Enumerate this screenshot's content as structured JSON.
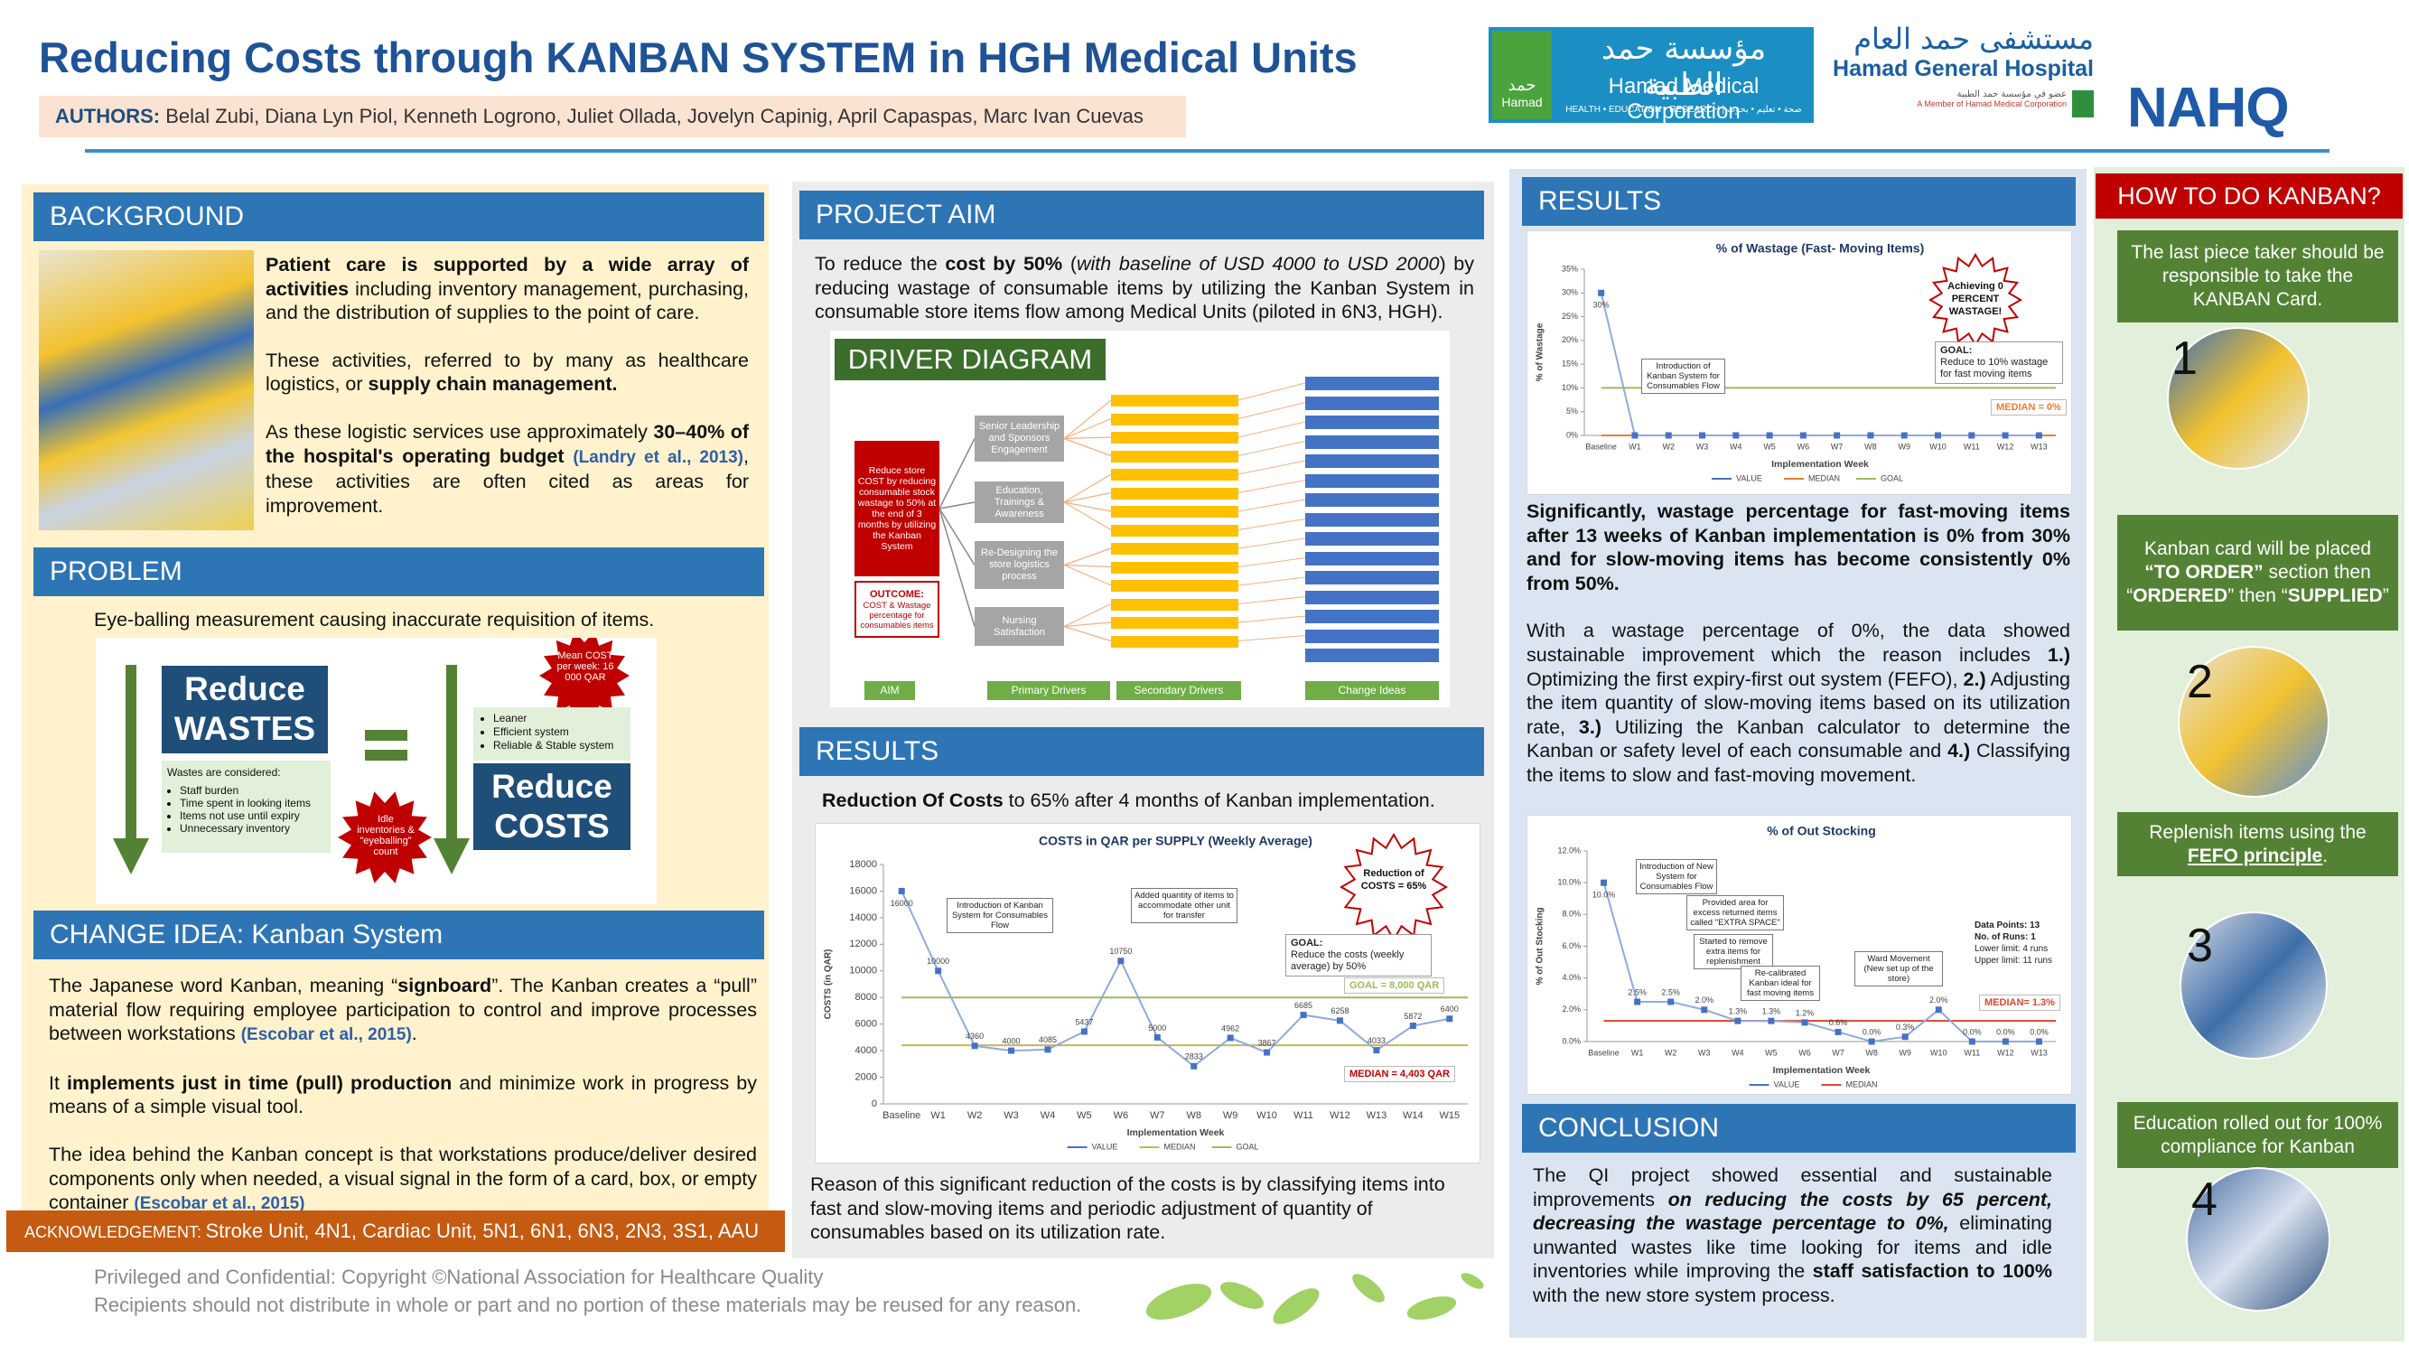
{
  "header": {
    "title": "Reducing Costs through KANBAN SYSTEM in HGH Medical Units",
    "authors_label": "AUTHORS:",
    "authors": "Belal Zubi, Diana Lyn Piol, Kenneth Logrono, Juliet Ollada, Jovelyn Capinig, April Capaspas, Marc Ivan Cuevas",
    "logos": {
      "hmc_icon_arabic": "حمد",
      "hmc_icon": "Hamad",
      "hmc_arabic": "مؤسسة حمد الطبية",
      "hmc": "Hamad Medical Corporation",
      "hmc_tagline": "HEALTH • EDUCATION • RESEARCH | صحة • تعليم • بحوث",
      "hgh_arabic": "مستشفى حمد العام",
      "hgh": "Hamad General Hospital",
      "hgh_sub_arabic": "عضو في مؤسسة حمد الطبية",
      "hgh_sub": "A Member of Hamad Medical Corporation",
      "nahq": "NAHQ"
    }
  },
  "background": {
    "heading": "BACKGROUND",
    "paragraphs": [
      [
        {
          "text": "Patient care is supported by a wide array of activities",
          "style": "bold"
        },
        {
          "text": " including inventory management, purchasing, and the distribution of supplies to the point of care."
        }
      ],
      [
        {
          "text": "These activities, referred to by many as healthcare logistics, or "
        },
        {
          "text": "supply chain management.",
          "style": "bold"
        }
      ],
      [
        {
          "text": "As these logistic services use approximately "
        },
        {
          "text": "30–40% of the hospital's operating budget",
          "style": "bold"
        },
        {
          "text": " "
        },
        {
          "text": "(Landry et al., 2013)",
          "style": "cite"
        },
        {
          "text": ", these activities are often cited as areas for improvement."
        }
      ]
    ]
  },
  "problem": {
    "heading": "PROBLEM",
    "text": "Eye-balling measurement causing inaccurate requisition of items.",
    "graphic": {
      "reduce_wastes": [
        "Reduce",
        "WASTES"
      ],
      "wastes_heading": "Wastes are considered:",
      "wastes": [
        "Staff burden",
        "Time spent in looking items",
        "Items not use until expiry",
        "Unnecessary inventory"
      ],
      "idle_burst": "Idle inventories & \"eyeballing\" count",
      "cost_burst": "Mean COST per week: 16 000 QAR",
      "benefits": [
        "Leaner",
        "Efficient system",
        "Reliable & Stable system"
      ],
      "reduce_costs": [
        "Reduce",
        "COSTS"
      ]
    }
  },
  "change_idea": {
    "heading": "CHANGE IDEA: Kanban System",
    "paragraphs": [
      [
        {
          "text": "The Japanese word Kanban, meaning “"
        },
        {
          "text": "signboard",
          "style": "bold"
        },
        {
          "text": "”. The Kanban creates a “pull” material flow requiring employee participation to control and improve processes between workstations "
        },
        {
          "text": "(Escobar et al., 2015)",
          "style": "cite"
        },
        {
          "text": "."
        }
      ],
      [
        {
          "text": "It "
        },
        {
          "text": "implements just in time (pull) production",
          "style": "bold"
        },
        {
          "text": " and minimize work in progress by means of a simple visual tool."
        }
      ],
      [
        {
          "text": "The idea behind the Kanban concept is that workstations produce/deliver desired components only when needed, a visual signal in the form of a card, box, or empty container "
        },
        {
          "text": "(Escobar et al., 2015)",
          "style": "cite"
        }
      ]
    ]
  },
  "acknowledgement": {
    "label": "ACKNOWLEDGEMENT:",
    "text": "Stroke Unit, 4N1, Cardiac Unit, 5N1, 6N1, 6N3, 2N3, 3S1, AAU"
  },
  "footer": {
    "copyright": "Privileged and Confidential: Copyright ©National Association for Healthcare Quality",
    "notice": "Recipients should not distribute in whole or part and no portion of these materials may be reused for any reason."
  },
  "project_aim": {
    "heading": "PROJECT AIM",
    "paragraphs": [
      [
        {
          "text": "To reduce the "
        },
        {
          "text": "cost by 50%",
          "style": "bold"
        },
        {
          "text": " ("
        },
        {
          "text": "with baseline of USD 4000 to USD 2000",
          "style": "italic"
        },
        {
          "text": ") by reducing wastage of consumable items by utilizing the Kanban System in consumable store items flow among Medical Units (piloted in 6N3, HGH)."
        }
      ]
    ]
  },
  "driver_diagram": {
    "title": "DRIVER DIAGRAM",
    "aim": "Reduce store COST by reducing consumable stock wastage to 50% at the end of 3 months by utilizing the Kanban System",
    "outcome_label": "OUTCOME:",
    "outcome": "COST & Wastage percentage for consumables items",
    "primary_drivers": [
      "Senior Leadership and Sponsors Engagement",
      "Education, Trainings & Awareness",
      "Re-Designing the store logistics process",
      "Nursing Satisfaction"
    ],
    "column_labels": [
      "AIM",
      "Primary Drivers",
      "Secondary Drivers",
      "Change Ideas"
    ]
  },
  "results_costs": {
    "heading": "RESULTS",
    "paragraphs": [
      [
        {
          "text": "Reduction Of Costs",
          "style": "bold"
        },
        {
          "text": " to 65% after 4 months of Kanban implementation."
        }
      ]
    ],
    "note": "Reason of this significant reduction of the costs is by classifying items into fast and slow-moving items and periodic adjustment of quantity of consumables based on its utilization rate."
  },
  "results_wastage": {
    "heading": "RESULTS",
    "paragraphs": [
      [
        {
          "text": "Significantly, wastage percentage for fast-moving items after 13 weeks of Kanban implementation is 0% from 30% and for slow-moving items has become consistently 0% from 50%.",
          "style": "bold"
        }
      ],
      [
        {
          "text": "With a wastage percentage of 0%, the data showed sustainable improvement which the reason includes "
        },
        {
          "text": "1.)",
          "style": "bold"
        },
        {
          "text": " Optimizing the first expiry-first out system (FEFO), "
        },
        {
          "text": "2.)",
          "style": "bold"
        },
        {
          "text": " Adjusting the item quantity of slow-moving items based on its utilization rate, "
        },
        {
          "text": "3.)",
          "style": "bold"
        },
        {
          "text": " Utilizing the Kanban calculator to determine the Kanban or safety level of each consumable and "
        },
        {
          "text": "4.)",
          "style": "bold"
        },
        {
          "text": " Classifying the items to slow and fast-moving movement."
        }
      ]
    ]
  },
  "conclusion": {
    "heading": "CONCLUSION",
    "paragraphs": [
      [
        {
          "text": "The QI project showed essential and sustainable improvements "
        },
        {
          "text": "on reducing the costs by 65 percent, decreasing the wastage percentage to 0%,",
          "style": "bold-italic"
        },
        {
          "text": " eliminating unwanted wastes like time looking for items and idle inventories while improving the "
        },
        {
          "text": "staff satisfaction to 100%",
          "style": "bold"
        },
        {
          "text": " with the new store system process."
        }
      ]
    ]
  },
  "how_to": {
    "heading": "HOW TO DO KANBAN?",
    "steps": [
      {
        "number": "1",
        "text": [
          {
            "text": "The last piece taker should be responsible to take the KANBAN Card."
          }
        ]
      },
      {
        "number": "2",
        "text": [
          {
            "text": "Kanban card will be placed "
          },
          {
            "text": "“TO ORDER”",
            "style": "bold"
          },
          {
            "text": " section then “"
          },
          {
            "text": "ORDERED",
            "style": "bold"
          },
          {
            "text": "” then “"
          },
          {
            "text": "SUPPLIED",
            "style": "bold"
          },
          {
            "text": "”"
          }
        ]
      },
      {
        "number": "3",
        "text": [
          {
            "text": "Replenish items using the "
          },
          {
            "text": "FEFO principle",
            "style": "bold-underline"
          },
          {
            "text": "."
          }
        ]
      },
      {
        "number": "4",
        "text": [
          {
            "text": "Education rolled out for 100% compliance for Kanban"
          }
        ]
      }
    ]
  },
  "chart_data": [
    {
      "type": "line",
      "title": "COSTS in QAR per SUPPLY (Weekly Average)",
      "xlabel": "Implementation Week",
      "ylabel": "COSTS (in QAR)",
      "categories": [
        "Baseline",
        "W1",
        "W2",
        "W3",
        "W4",
        "W5",
        "W6",
        "W7",
        "W8",
        "W9",
        "W10",
        "W11",
        "W12",
        "W13",
        "W14",
        "W15"
      ],
      "series": [
        {
          "name": "VALUE",
          "color": "#4472c4",
          "values": [
            16000,
            10000,
            4360,
            4000,
            4085,
            5437,
            10750,
            5000,
            2833,
            4962,
            3867,
            6685,
            6258,
            4033,
            5872,
            6400
          ]
        }
      ],
      "reference_lines": [
        {
          "name": "MEDIAN",
          "color": "#c9b458",
          "value": 4403,
          "label": "MEDIAN = 4,403 QAR"
        },
        {
          "name": "GOAL",
          "color": "#9bbb59",
          "value": 8000,
          "label": "GOAL = 8,000 QAR"
        }
      ],
      "ylim": [
        0,
        18000
      ],
      "yticks": [
        0,
        2000,
        4000,
        6000,
        8000,
        10000,
        12000,
        14000,
        16000,
        18000
      ],
      "annotations": [
        "Introduction of Kanban System for Consumables Flow",
        "Added quantity of items to accommodate other unit for transfer"
      ],
      "callout": "Reduction of COSTS = 65%",
      "goal_note": {
        "heading": "GOAL:",
        "text": "Reduce the costs (weekly average) by 50%"
      }
    },
    {
      "type": "line",
      "title": "% of Wastage (Fast- Moving Items)",
      "xlabel": "Implementation Week",
      "ylabel": "% of Wastage",
      "categories": [
        "Baseline",
        "W1",
        "W2",
        "W3",
        "W4",
        "W5",
        "W6",
        "W7",
        "W8",
        "W9",
        "W10",
        "W11",
        "W12",
        "W13"
      ],
      "series": [
        {
          "name": "VALUE",
          "color": "#4472c4",
          "values": [
            30,
            0,
            0,
            0,
            0,
            0,
            0,
            0,
            0,
            0,
            0,
            0,
            0,
            0
          ],
          "value_labels": [
            "30%",
            null,
            null,
            null,
            null,
            null,
            null,
            null,
            null,
            null,
            null,
            null,
            null,
            null
          ]
        }
      ],
      "reference_lines": [
        {
          "name": "MEDIAN",
          "color": "#ed7d31",
          "value": 0,
          "label": "MEDIAN = 0%"
        },
        {
          "name": "GOAL",
          "color": "#9bbb59",
          "value": 10
        }
      ],
      "ylim": [
        0,
        35
      ],
      "yticks": [
        {
          "value": 0,
          "label": "0%"
        },
        {
          "value": 5,
          "label": "5%"
        },
        {
          "value": 10,
          "label": "10%"
        },
        {
          "value": 15,
          "label": "15%"
        },
        {
          "value": 20,
          "label": "20%"
        },
        {
          "value": 25,
          "label": "25%"
        },
        {
          "value": 30,
          "label": "30%"
        },
        {
          "value": 35,
          "label": "35%"
        }
      ],
      "annotations": [
        "Introduction of Kanban System for Consumables Flow"
      ],
      "callout": "Achieving 0 PERCENT WASTAGE!",
      "goal_note": {
        "heading": "GOAL:",
        "text": "Reduce to 10% wastage for fast moving items"
      }
    },
    {
      "type": "line",
      "title": "% of Out Stocking",
      "xlabel": "Implementation Week",
      "ylabel": "% of Out Stocking",
      "categories": [
        "Baseline",
        "W1",
        "W2",
        "W3",
        "W4",
        "W5",
        "W6",
        "W7",
        "W8",
        "W9",
        "W10",
        "W11",
        "W12",
        "W13"
      ],
      "series": [
        {
          "name": "VALUE",
          "color": "#4472c4",
          "values": [
            10.0,
            2.5,
            2.5,
            2.0,
            1.3,
            1.3,
            1.2,
            0.6,
            0.0,
            0.3,
            2.0,
            0.0,
            0.0,
            0.0
          ],
          "value_labels": [
            "10.0%",
            "2.5%",
            "2.5%",
            "2.0%",
            "1.3%",
            "1.3%",
            "1.2%",
            "0.6%",
            "0.0%",
            "0.3%",
            "2.0%",
            "0.0%",
            "0.0%",
            "0.0%"
          ]
        }
      ],
      "reference_lines": [
        {
          "name": "MEDIAN",
          "color": "#e0442a",
          "value": 1.3,
          "label": "MEDIAN= 1.3%"
        }
      ],
      "ylim": [
        0,
        12
      ],
      "yticks": [
        {
          "value": 0,
          "label": "0.0%"
        },
        {
          "value": 2,
          "label": "2.0%"
        },
        {
          "value": 4,
          "label": "4.0%"
        },
        {
          "value": 6,
          "label": "6.0%"
        },
        {
          "value": 8,
          "label": "8.0%"
        },
        {
          "value": 10,
          "label": "10.0%"
        },
        {
          "value": 12,
          "label": "12.0%"
        }
      ],
      "annotations": [
        "Introduction of New System for Consumables Flow",
        "Provided area for excess returned items called \"EXTRA SPACE\"",
        "Started to remove extra items for replenishment",
        "Re-calibrated Kanban ideal for fast moving items",
        "Ward Movement (New set up of the store)"
      ],
      "stats": [
        "Data Points: 13",
        "No. of Runs: 1",
        "Lower limit: 4 runs",
        "Upper limit: 11 runs"
      ]
    }
  ]
}
